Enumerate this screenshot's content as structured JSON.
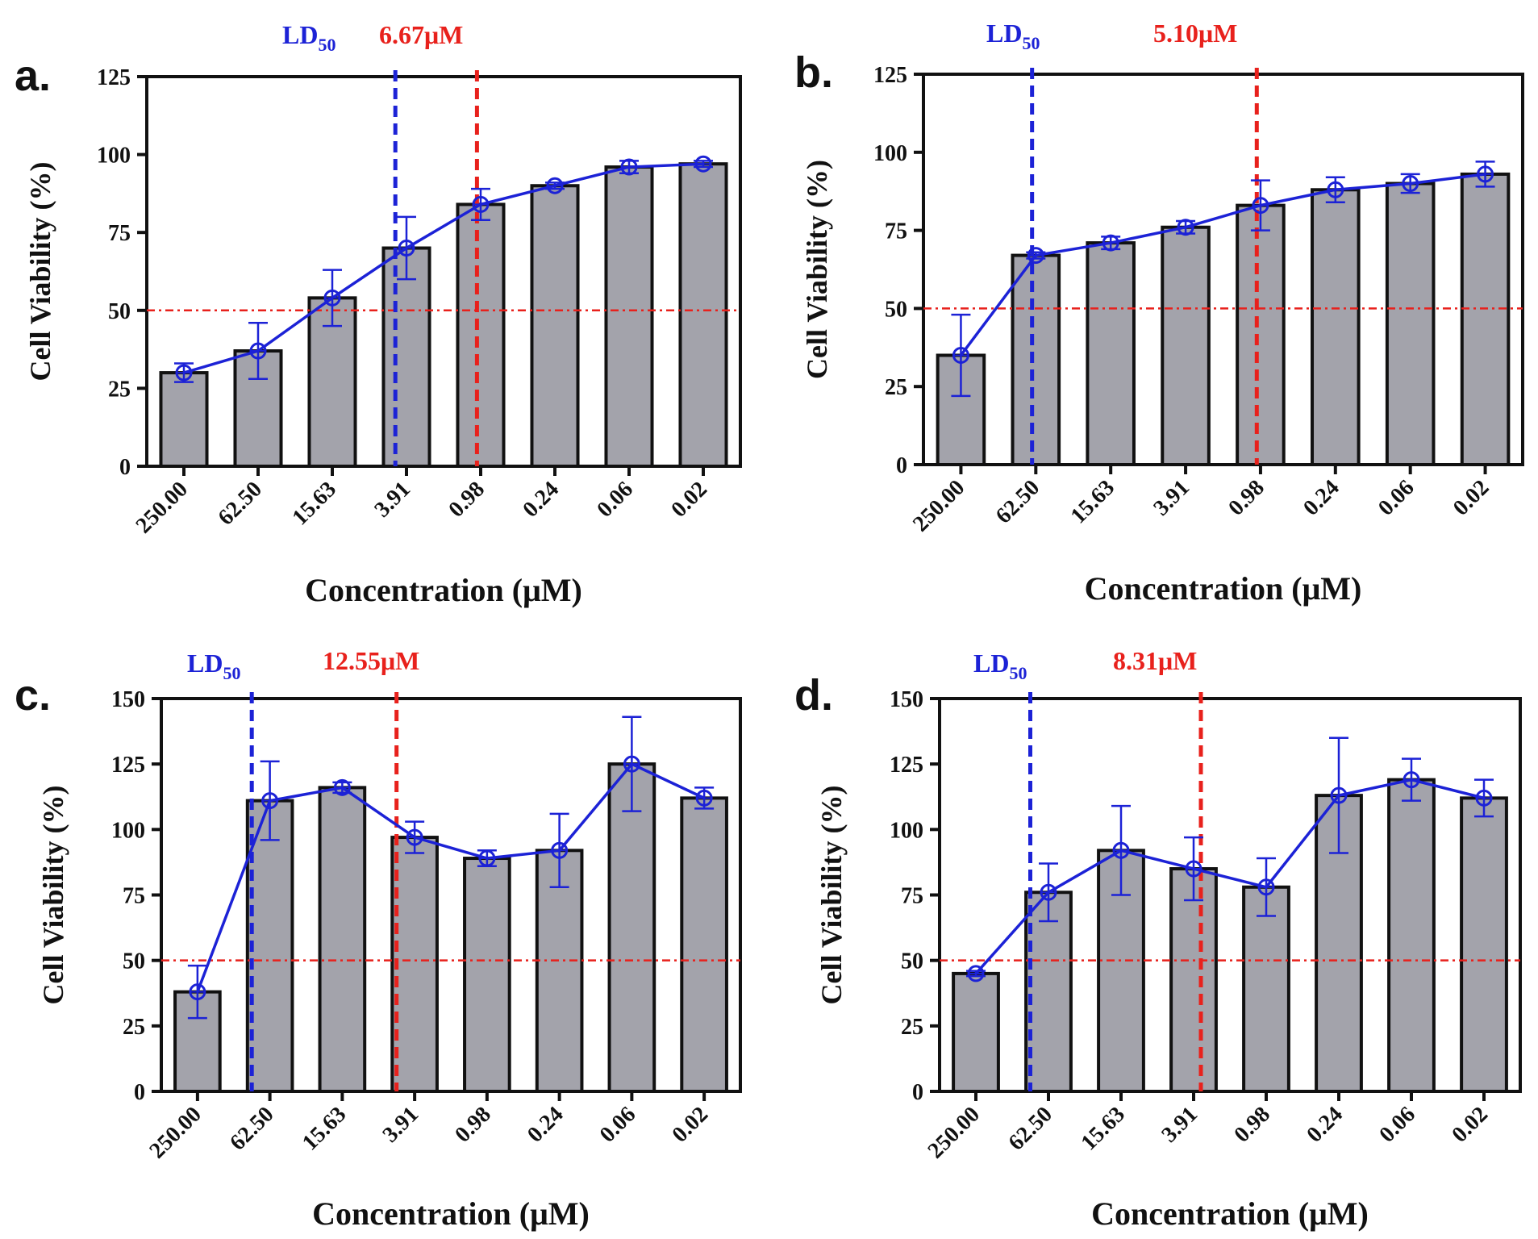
{
  "colors": {
    "bar_fill": "#a3a3ab",
    "bar_stroke": "#111111",
    "line": "#1c22d6",
    "ld50_line": "#1c22d6",
    "ld50_text": "#1c22d6",
    "value_line": "#e8211c",
    "value_text": "#e8211c",
    "threshold": "#e8211c"
  },
  "chart_data": [
    {
      "type": "bar",
      "panel_label": "a.",
      "ld50_label": "LD",
      "ld50_subscript": "50",
      "ld50_value_label": "6.67μM",
      "ld50_position": 3.35,
      "value_position": 4.45,
      "threshold": 50,
      "categories": [
        "250.00",
        "62.50",
        "15.63",
        "3.91",
        "0.98",
        "0.24",
        "0.06",
        "0.02"
      ],
      "values": [
        30,
        37,
        54,
        70,
        84,
        90,
        96,
        97
      ],
      "errors": [
        3,
        9,
        9,
        10,
        5,
        1,
        2,
        1
      ],
      "ylim": [
        0,
        125
      ],
      "yticks": [
        "0",
        "25",
        "50",
        "75",
        "100",
        "125"
      ],
      "xlabel": "Concentration (μM)",
      "ylabel": "Cell Viability (%)"
    },
    {
      "type": "bar",
      "panel_label": "b.",
      "ld50_label": "LD",
      "ld50_subscript": "50",
      "ld50_value_label": "5.10μM",
      "ld50_position": 1.45,
      "value_position": 4.45,
      "threshold": 50,
      "categories": [
        "250.00",
        "62.50",
        "15.63",
        "3.91",
        "0.98",
        "0.24",
        "0.06",
        "0.02"
      ],
      "values": [
        35,
        67,
        71,
        76,
        83,
        88,
        90,
        93
      ],
      "errors": [
        13,
        1,
        2,
        2,
        8,
        4,
        3,
        4
      ],
      "ylim": [
        0,
        125
      ],
      "yticks": [
        "0",
        "25",
        "50",
        "75",
        "100",
        "125"
      ],
      "xlabel": "Concentration (μM)",
      "ylabel": "Cell Viability (%)"
    },
    {
      "type": "bar",
      "panel_label": "c.",
      "ld50_label": "LD",
      "ld50_subscript": "50",
      "ld50_value_label": "12.55μM",
      "ld50_position": 1.25,
      "value_position": 3.25,
      "threshold": 50,
      "categories": [
        "250.00",
        "62.50",
        "15.63",
        "3.91",
        "0.98",
        "0.24",
        "0.06",
        "0.02"
      ],
      "values": [
        38,
        111,
        116,
        97,
        89,
        92,
        125,
        112
      ],
      "errors": [
        10,
        15,
        2,
        6,
        3,
        14,
        18,
        4
      ],
      "ylim": [
        0,
        150
      ],
      "yticks": [
        "0",
        "25",
        "50",
        "75",
        "100",
        "125",
        "150"
      ],
      "xlabel": "Concentration (μM)",
      "ylabel": "Cell Viability (%)"
    },
    {
      "type": "bar",
      "panel_label": "d.",
      "ld50_label": "LD",
      "ld50_subscript": "50",
      "ld50_value_label": "8.31μM",
      "ld50_position": 1.25,
      "value_position": 3.6,
      "threshold": 50,
      "categories": [
        "250.00",
        "62.50",
        "15.63",
        "3.91",
        "0.98",
        "0.24",
        "0.06",
        "0.02"
      ],
      "values": [
        45,
        76,
        92,
        85,
        78,
        113,
        119,
        112
      ],
      "errors": [
        1,
        11,
        17,
        12,
        11,
        22,
        8,
        7
      ],
      "ylim": [
        0,
        150
      ],
      "yticks": [
        "0",
        "25",
        "50",
        "75",
        "100",
        "125",
        "150"
      ],
      "xlabel": "Concentration (μM)",
      "ylabel": "Cell Viability (%)"
    }
  ]
}
